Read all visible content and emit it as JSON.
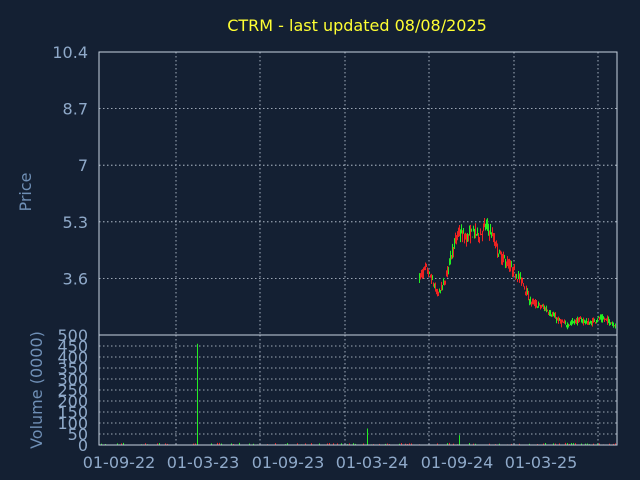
{
  "title": "CTRM - last updated 08/08/2025",
  "colors": {
    "background": "#142033",
    "title": "#ffff33",
    "axis_text": "#8fa9c9",
    "up": "#22ee22",
    "down": "#ee2222",
    "grid": "#c8d3e0"
  },
  "chart_data": [
    {
      "type": "candlestick",
      "title": "CTRM - last updated 08/08/2025",
      "ylabel": "Price",
      "ylim": [
        1.9,
        10.4
      ],
      "yticks": [
        "10.4",
        "8.7",
        "7",
        "5.3",
        "3.6"
      ],
      "xticks": [
        "01-09-22",
        "01-03-23",
        "01-09-23",
        "01-03-24",
        "01-09-24",
        "01-03-25"
      ],
      "grid": true,
      "price_path": [
        [
          "2024-06-10",
          3.6
        ],
        [
          "2024-06-25",
          3.9
        ],
        [
          "2024-07-10",
          3.5
        ],
        [
          "2024-07-20",
          3.1
        ],
        [
          "2024-08-05",
          3.5
        ],
        [
          "2024-08-20",
          4.4
        ],
        [
          "2024-09-05",
          5.0
        ],
        [
          "2024-09-20",
          4.8
        ],
        [
          "2024-10-05",
          5.0
        ],
        [
          "2024-10-20",
          4.9
        ],
        [
          "2024-11-01",
          5.2
        ],
        [
          "2024-11-15",
          4.9
        ],
        [
          "2024-12-01",
          4.3
        ],
        [
          "2024-12-15",
          4.1
        ],
        [
          "2025-01-01",
          3.8
        ],
        [
          "2025-01-20",
          3.5
        ],
        [
          "2025-02-05",
          2.9
        ],
        [
          "2025-02-20",
          2.8
        ],
        [
          "2025-03-10",
          2.7
        ],
        [
          "2025-03-25",
          2.5
        ],
        [
          "2025-04-10",
          2.3
        ],
        [
          "2025-04-25",
          2.2
        ],
        [
          "2025-05-10",
          2.3
        ],
        [
          "2025-05-25",
          2.35
        ],
        [
          "2025-06-15",
          2.25
        ],
        [
          "2025-07-01",
          2.4
        ],
        [
          "2025-07-20",
          2.35
        ],
        [
          "2025-08-08",
          2.2
        ]
      ]
    },
    {
      "type": "bar",
      "ylabel": "Volume (0000)",
      "ylim": [
        0,
        500
      ],
      "yticks": [
        "500",
        "450",
        "400",
        "350",
        "300",
        "250",
        "200",
        "150",
        "100",
        "50",
        "0"
      ],
      "xticks": [
        "01-09-22",
        "01-03-23",
        "01-09-23",
        "01-03-24",
        "01-09-24",
        "01-03-25"
      ],
      "grid": true,
      "spikes": [
        {
          "date": "2023-02-15",
          "value": 460
        },
        {
          "date": "2024-02-20",
          "value": 75
        },
        {
          "date": "2024-09-05",
          "value": 45
        }
      ]
    }
  ]
}
